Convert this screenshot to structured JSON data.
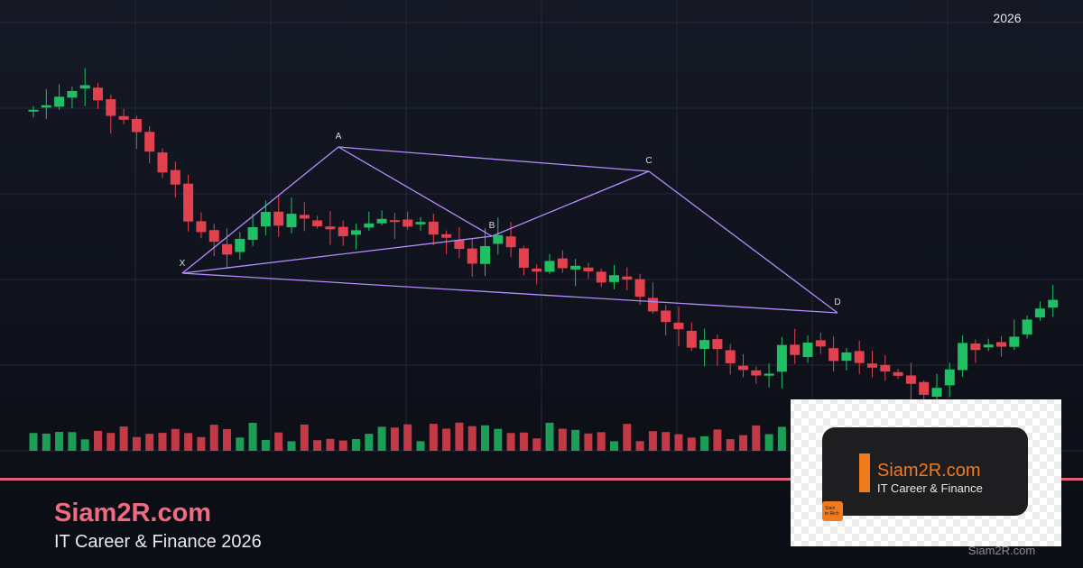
{
  "year_label": "2026",
  "pattern_labels": [
    "X",
    "A",
    "B",
    "C",
    "D"
  ],
  "brand": {
    "title": "Siam2R.com",
    "subtitle": "IT Career & Finance 2026"
  },
  "logo": {
    "name": "Siam2R.com",
    "tagline": "IT Career & Finance",
    "badge": [
      "Siam",
      "to Rich"
    ]
  },
  "watermark": "Siam2R.com"
}
